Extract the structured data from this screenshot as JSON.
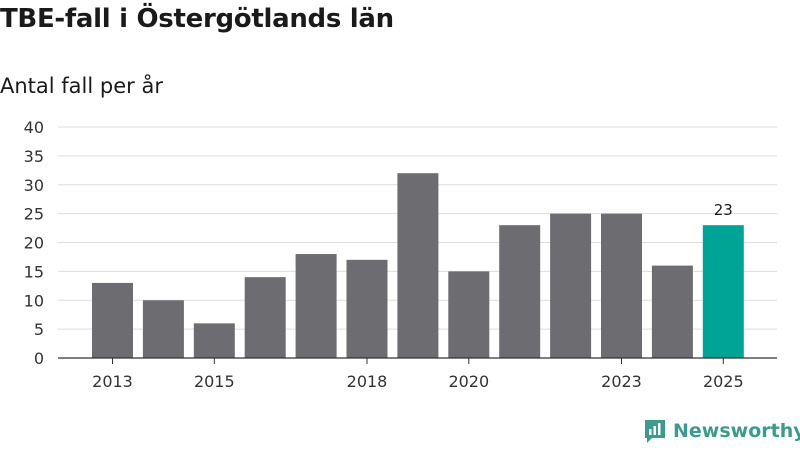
{
  "chart_data": {
    "type": "bar",
    "title": "TBE-fall i Östergötlands län",
    "subtitle": "Antal fall per år",
    "xlabel": "",
    "ylabel": "",
    "categories": [
      "2013",
      "2014",
      "2015",
      "2016",
      "2017",
      "2018",
      "2019",
      "2020",
      "2021",
      "2022",
      "2023",
      "2024",
      "2025"
    ],
    "values": [
      13,
      10,
      6,
      14,
      18,
      17,
      32,
      15,
      23,
      25,
      25,
      16,
      23
    ],
    "x_tick_labels": [
      "2013",
      "2015",
      "2018",
      "2020",
      "2023",
      "2025"
    ],
    "y_ticks": [
      0,
      5,
      10,
      15,
      20,
      25,
      30,
      35,
      40
    ],
    "ylim": [
      0,
      40
    ],
    "grid": true,
    "highlight": {
      "category": "2025",
      "label": "23"
    },
    "colors": {
      "bar": "#6d6c71",
      "highlight": "#00a497",
      "grid": "#dddddd",
      "axis": "#333333"
    }
  },
  "brand": {
    "name": "Newsworthy",
    "icon": "newsworthy-logo-icon",
    "color": "#3d9a8c"
  }
}
